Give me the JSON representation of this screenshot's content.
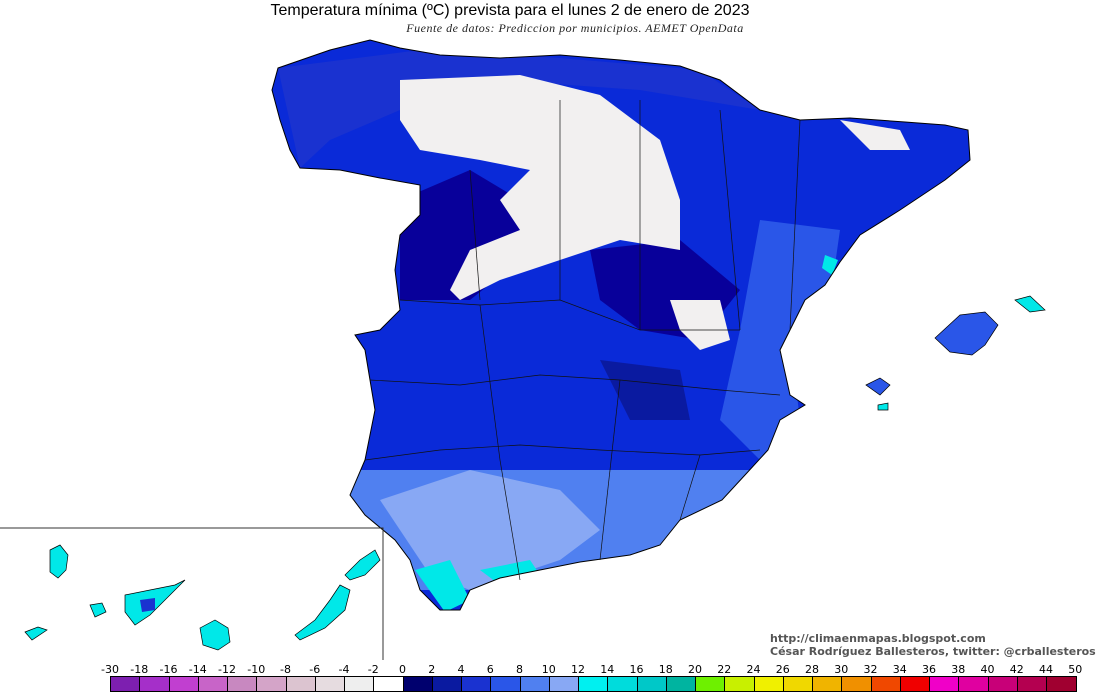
{
  "title": "Temperatura mínima (ºC) prevista para el lunes 2 de enero de 2023",
  "subtitle": "Fuente de datos: Prediccion por municipios. AEMET OpenData",
  "credits": {
    "url": "http://climaenmapas.blogspot.com",
    "author": "César Rodríguez Ballesteros, twitter: @crballesteros"
  },
  "legend": {
    "labels": [
      "-30",
      "-18",
      "-16",
      "-14",
      "-12",
      "-10",
      "-8",
      "-6",
      "-4",
      "-2",
      "0",
      "2",
      "4",
      "6",
      "8",
      "10",
      "12",
      "14",
      "16",
      "18",
      "20",
      "22",
      "24",
      "26",
      "28",
      "30",
      "32",
      "34",
      "36",
      "38",
      "40",
      "42",
      "44",
      "50"
    ],
    "colors": [
      "#7d1fb0",
      "#a52fc9",
      "#c13fd0",
      "#c864c8",
      "#c888c0",
      "#d4a4c8",
      "#dcc4d0",
      "#e6dce0",
      "#eeeeee",
      "#ffffff",
      "#00006e",
      "#0a1aa0",
      "#1a32d0",
      "#2a56e8",
      "#5080f0",
      "#88a8f4",
      "#00f0f0",
      "#00dcdc",
      "#00c8c8",
      "#00b4a0",
      "#6ef000",
      "#c8f000",
      "#f0f000",
      "#f0d800",
      "#f0b400",
      "#f09000",
      "#f04800",
      "#f00000",
      "#f000c8",
      "#e000a0",
      "#c80078",
      "#b40050",
      "#a00030"
    ]
  },
  "map_colors": {
    "snow": "#f2f0f0",
    "deep": "#08009a",
    "mid": "#0a2ad8",
    "light": "#2a56e8",
    "pale": "#88a8f4",
    "warm": "#00e8e8",
    "sea": "#ffffff"
  }
}
